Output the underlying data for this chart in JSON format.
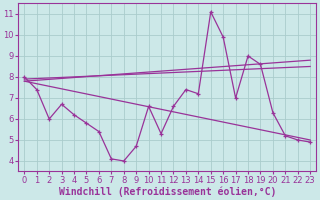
{
  "xlabel": "Windchill (Refroidissement éolien,°C)",
  "background_color": "#cce8e8",
  "grid_color": "#aacccc",
  "line_color": "#993399",
  "x_data": [
    0,
    1,
    2,
    3,
    4,
    5,
    6,
    7,
    8,
    9,
    10,
    11,
    12,
    13,
    14,
    15,
    16,
    17,
    18,
    19,
    20,
    21,
    22,
    23
  ],
  "y_main": [
    8.0,
    7.4,
    6.0,
    6.7,
    6.2,
    5.8,
    5.4,
    4.1,
    4.0,
    4.7,
    6.6,
    5.3,
    6.6,
    7.4,
    7.2,
    11.1,
    9.9,
    7.0,
    9.0,
    8.6,
    6.3,
    5.2,
    5.0,
    4.9
  ],
  "line1_x": [
    0,
    23
  ],
  "line1_y": [
    7.9,
    8.5
  ],
  "line2_x": [
    0,
    23
  ],
  "line2_y": [
    7.8,
    8.8
  ],
  "line3_x": [
    0,
    23
  ],
  "line3_y": [
    7.8,
    5.0
  ],
  "xlim": [
    -0.5,
    23.5
  ],
  "ylim": [
    3.5,
    11.5
  ],
  "yticks": [
    4,
    5,
    6,
    7,
    8,
    9,
    10,
    11
  ],
  "xticks": [
    0,
    1,
    2,
    3,
    4,
    5,
    6,
    7,
    8,
    9,
    10,
    11,
    12,
    13,
    14,
    15,
    16,
    17,
    18,
    19,
    20,
    21,
    22,
    23
  ],
  "tick_fontsize": 6.0,
  "xlabel_fontsize": 7.0
}
